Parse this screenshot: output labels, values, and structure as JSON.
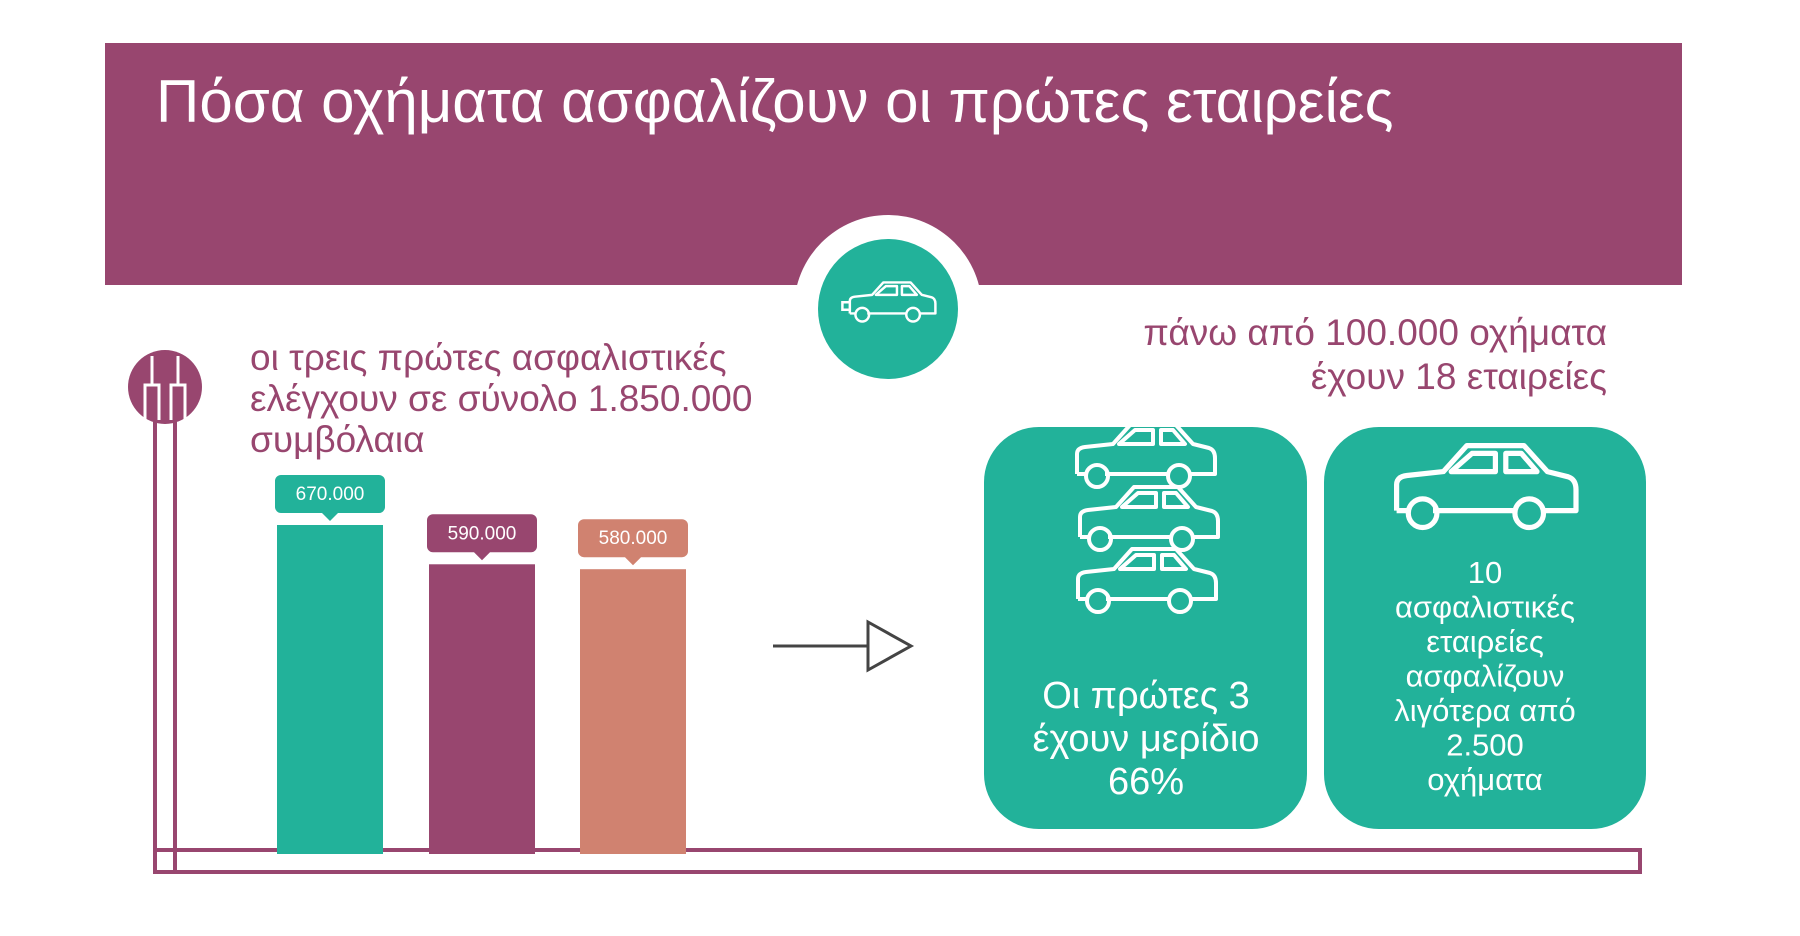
{
  "header": {
    "title": "Πόσα οχήματα ασφαλίζουν οι πρώτες εταιρείες"
  },
  "left_text": [
    "οι τρεις πρώτες ασφαλιστικές",
    "ελέγχουν σε σύνολο 1.850.000",
    "συμβόλαια"
  ],
  "right_text": [
    "πάνω από 100.000 οχήματα",
    "έχουν 18 εταιρείες"
  ],
  "cards": [
    {
      "lines": [
        "Οι πρώτες 3",
        "έχουν μερίδιο",
        "66%"
      ]
    },
    {
      "lines": [
        "10",
        "ασφαλιστικές",
        "εταιρείες",
        "ασφαλίζουν",
        "λιγότερα από",
        "2.500",
        "οχήματα"
      ]
    }
  ],
  "chart_data": {
    "type": "bar",
    "categories": [
      null,
      null,
      null
    ],
    "values": [
      670000,
      590000,
      580000
    ],
    "value_labels": [
      "670.000",
      "590.000",
      "580.000"
    ],
    "colors": [
      "#22b29a",
      "#98466f",
      "#d08270"
    ]
  }
}
